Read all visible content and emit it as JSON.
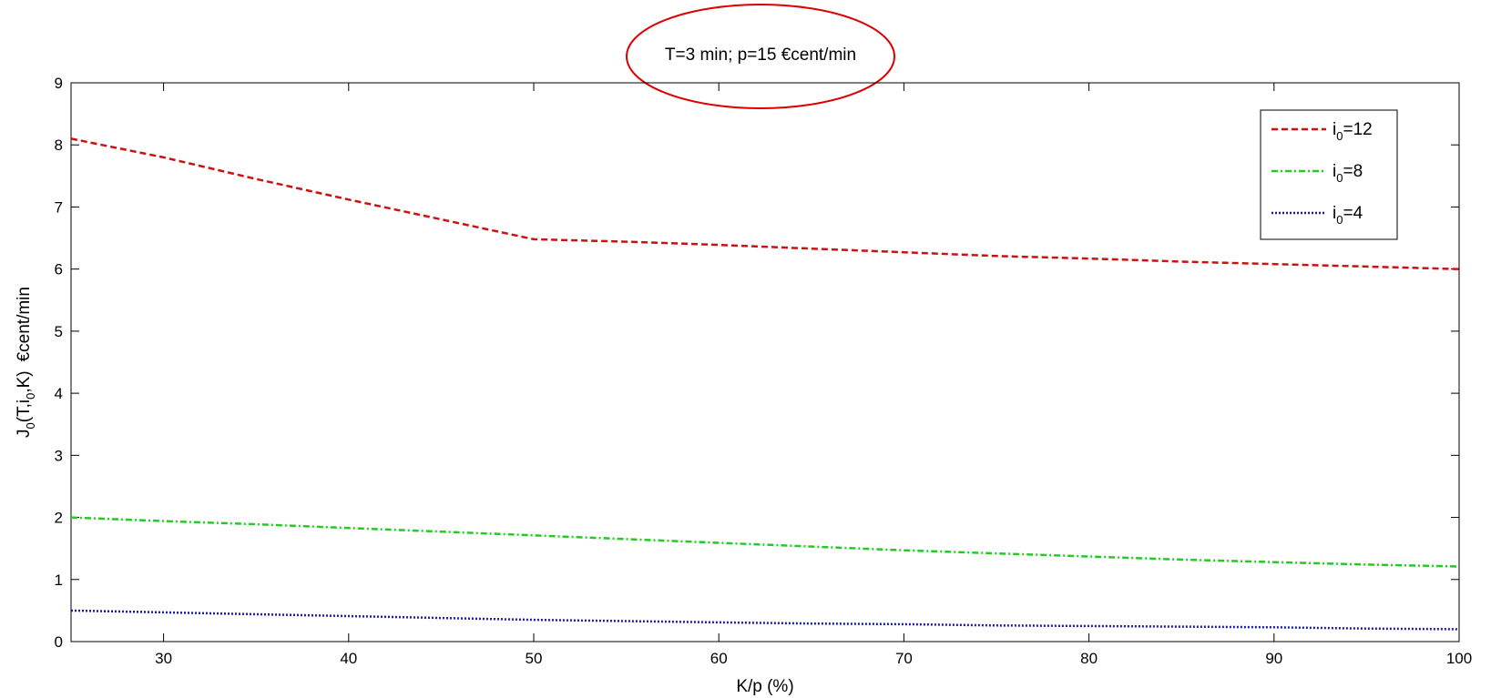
{
  "chart_data": {
    "type": "line",
    "title": "T=3 min; p=15 €cent/min",
    "xlabel": "K/p (%)",
    "ylabel": {
      "J": "J",
      "J_sub": "0",
      "open": "(T,i",
      "i_sub": "0",
      "close": ",K)",
      "unit": "€cent/min"
    },
    "xlim": [
      25,
      100
    ],
    "ylim": [
      0,
      9
    ],
    "xticks": [
      "30",
      "40",
      "50",
      "60",
      "70",
      "80",
      "90",
      "100"
    ],
    "yticks": [
      "0",
      "1",
      "2",
      "3",
      "4",
      "5",
      "6",
      "7",
      "8",
      "9"
    ],
    "grid": false,
    "legend_position": "top-right",
    "series": [
      {
        "name": "i0=12",
        "legend": {
          "main": "i",
          "sub": "0",
          "suffix": "=12"
        },
        "color": "#cc1111",
        "style": "dashed",
        "x": [
          25,
          30,
          35,
          40,
          45,
          50,
          55,
          60,
          65,
          70,
          75,
          80,
          85,
          90,
          95,
          100
        ],
        "y": [
          8.1,
          7.8,
          7.45,
          7.12,
          6.8,
          6.48,
          6.44,
          6.39,
          6.33,
          6.27,
          6.21,
          6.17,
          6.12,
          6.08,
          6.04,
          6.0
        ]
      },
      {
        "name": "i0=8",
        "legend": {
          "main": "i",
          "sub": "0",
          "suffix": "=8"
        },
        "color": "#22cc22",
        "style": "dashdot",
        "x": [
          25,
          30,
          35,
          40,
          45,
          50,
          55,
          60,
          65,
          70,
          75,
          80,
          85,
          90,
          95,
          100
        ],
        "y": [
          2.0,
          1.94,
          1.89,
          1.83,
          1.77,
          1.71,
          1.65,
          1.59,
          1.53,
          1.47,
          1.42,
          1.37,
          1.32,
          1.28,
          1.24,
          1.21
        ]
      },
      {
        "name": "i0=4",
        "legend": {
          "main": "i",
          "sub": "0",
          "suffix": "=4"
        },
        "color": "#1a1aa0",
        "style": "dotted",
        "x": [
          25,
          30,
          35,
          40,
          45,
          50,
          55,
          60,
          65,
          70,
          75,
          80,
          85,
          90,
          95,
          100
        ],
        "y": [
          0.5,
          0.47,
          0.44,
          0.41,
          0.38,
          0.35,
          0.33,
          0.31,
          0.29,
          0.28,
          0.26,
          0.25,
          0.24,
          0.23,
          0.21,
          0.2
        ]
      }
    ],
    "annotations": [
      {
        "shape": "ellipse",
        "target": "title",
        "color": "#dd0000"
      }
    ]
  }
}
